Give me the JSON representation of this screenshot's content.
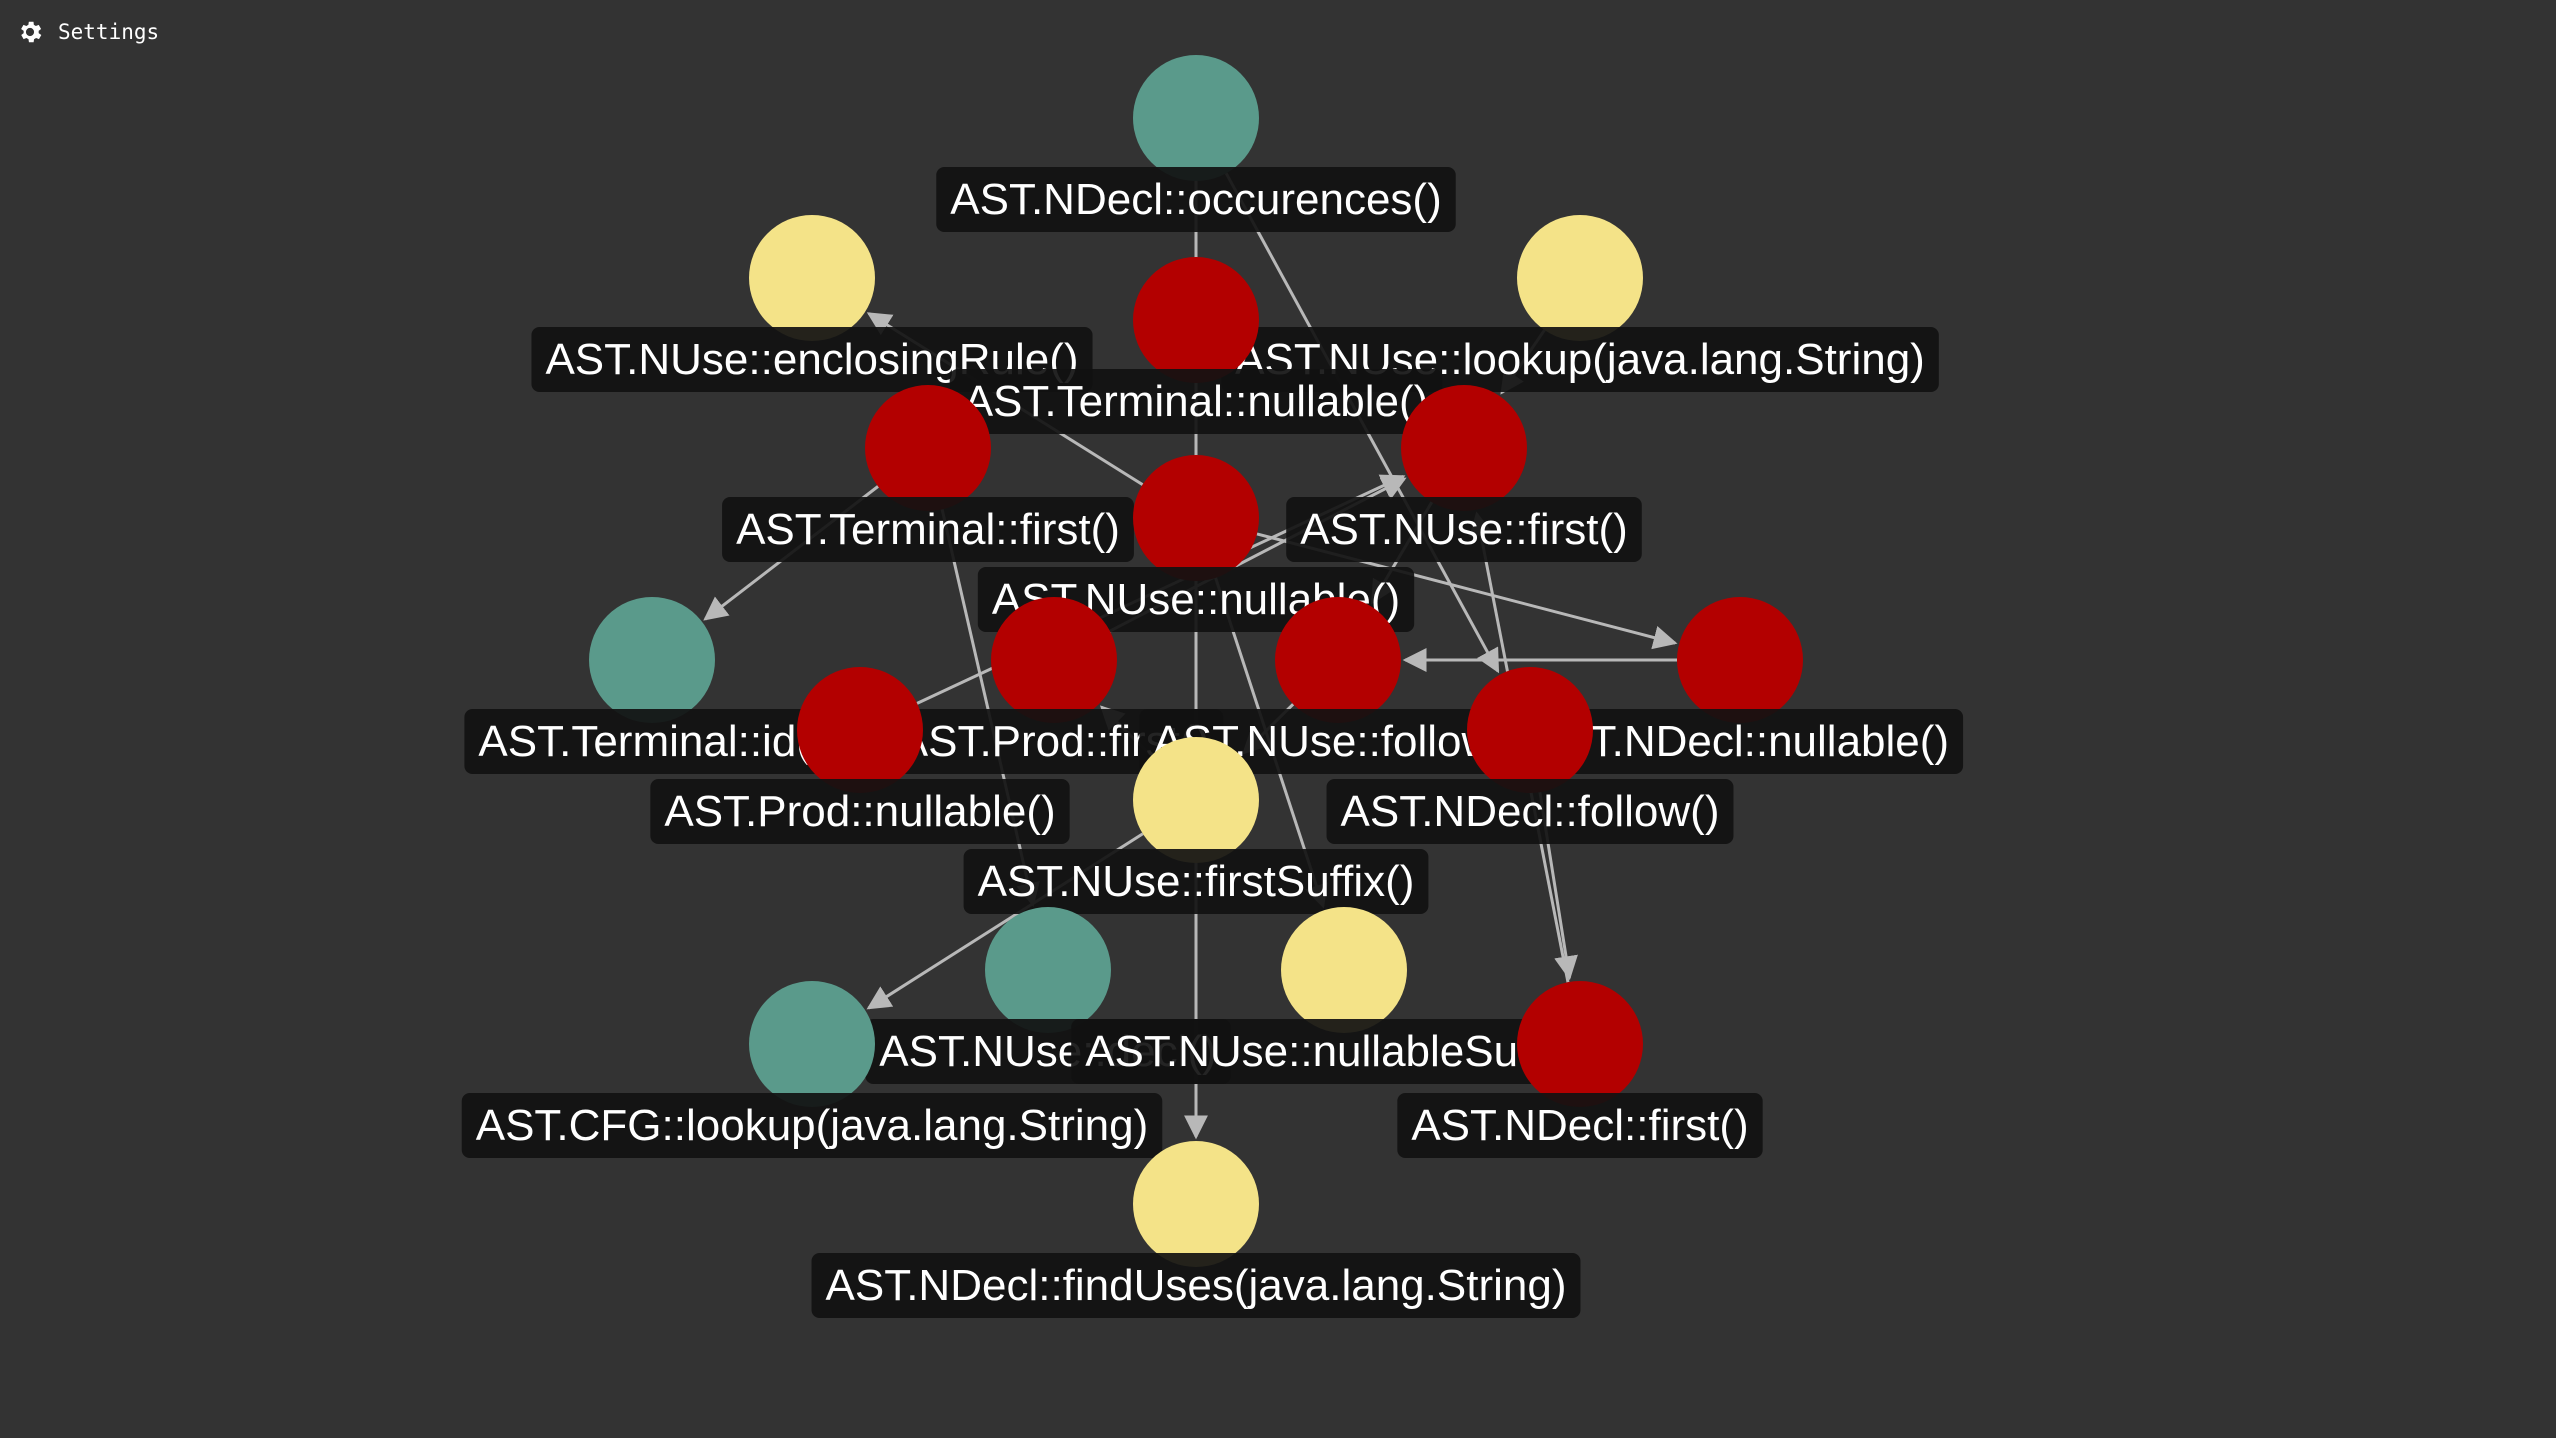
{
  "settings": {
    "label": "Settings",
    "icon": "gear-icon"
  },
  "colors": {
    "background": "#333333",
    "teal": "#5a9a8b",
    "yellow": "#f4e388",
    "red": "#b30000",
    "edge": "#b8b8b8",
    "label_bg": "#111111",
    "label_text": "#ffffff"
  },
  "graph": {
    "nodes": [
      {
        "id": "occ",
        "label": "AST.NDecl::occurences()",
        "color": "teal"
      },
      {
        "id": "encl",
        "label": "AST.NUse::enclosingRule()",
        "color": "yellow"
      },
      {
        "id": "lookupUse",
        "label": "AST.NUse::lookup(java.lang.String)",
        "color": "yellow"
      },
      {
        "id": "termNullable",
        "label": "AST.Terminal::nullable()",
        "color": "red"
      },
      {
        "id": "termFirst",
        "label": "AST.Terminal::first()",
        "color": "red"
      },
      {
        "id": "nuseFirst",
        "label": "AST.NUse::first()",
        "color": "red"
      },
      {
        "id": "nuseNullable",
        "label": "AST.NUse::nullable()",
        "color": "red"
      },
      {
        "id": "termId",
        "label": "AST.Terminal::id()",
        "color": "teal"
      },
      {
        "id": "prodFirst",
        "label": "AST.Prod::first()",
        "color": "red"
      },
      {
        "id": "nuseFollow",
        "label": "AST.NUse::follow()",
        "color": "red"
      },
      {
        "id": "ndeclNullable",
        "label": "AST.NDecl::nullable()",
        "color": "red"
      },
      {
        "id": "prodNullable",
        "label": "AST.Prod::nullable()",
        "color": "red"
      },
      {
        "id": "ndeclFollow",
        "label": "AST.NDecl::follow()",
        "color": "red"
      },
      {
        "id": "firstSuffix",
        "label": "AST.NUse::firstSuffix()",
        "color": "yellow"
      },
      {
        "id": "nuseDecl",
        "label": "AST.NUse::decl()",
        "color": "teal"
      },
      {
        "id": "nullableSuffix",
        "label": "AST.NUse::nullableSuffix()",
        "color": "yellow"
      },
      {
        "id": "cfgLookup",
        "label": "AST.CFG::lookup(java.lang.String)",
        "color": "teal"
      },
      {
        "id": "ndeclFirst",
        "label": "AST.NDecl::first()",
        "color": "red"
      },
      {
        "id": "findUses",
        "label": "AST.NDecl::findUses(java.lang.String)",
        "color": "yellow"
      }
    ],
    "edges": [
      [
        "occ",
        "findUses"
      ],
      [
        "occ",
        "ndeclFollow"
      ],
      [
        "termFirst",
        "termId"
      ],
      [
        "nuseNullable",
        "encl"
      ],
      [
        "nuseNullable",
        "ndeclNullable"
      ],
      [
        "prodNullable",
        "nuseFirst"
      ],
      [
        "firstSuffix",
        "cfgLookup"
      ],
      [
        "firstSuffix",
        "prodFirst"
      ],
      [
        "ndeclFollow",
        "ndeclFirst"
      ],
      [
        "ndeclNullable",
        "nuseFollow"
      ],
      [
        "nuseFollow",
        "firstSuffix"
      ],
      [
        "termNullable",
        "termNullable"
      ],
      [
        "prodFirst",
        "nuseFirst"
      ],
      [
        "nuseFirst",
        "nuseFollow"
      ],
      [
        "termFirst",
        "nuseDecl"
      ],
      [
        "nuseNullable",
        "nullableSuffix"
      ],
      [
        "ndeclFirst",
        "nuseFirst"
      ],
      [
        "lookupUse",
        "nuseFirst"
      ]
    ]
  }
}
